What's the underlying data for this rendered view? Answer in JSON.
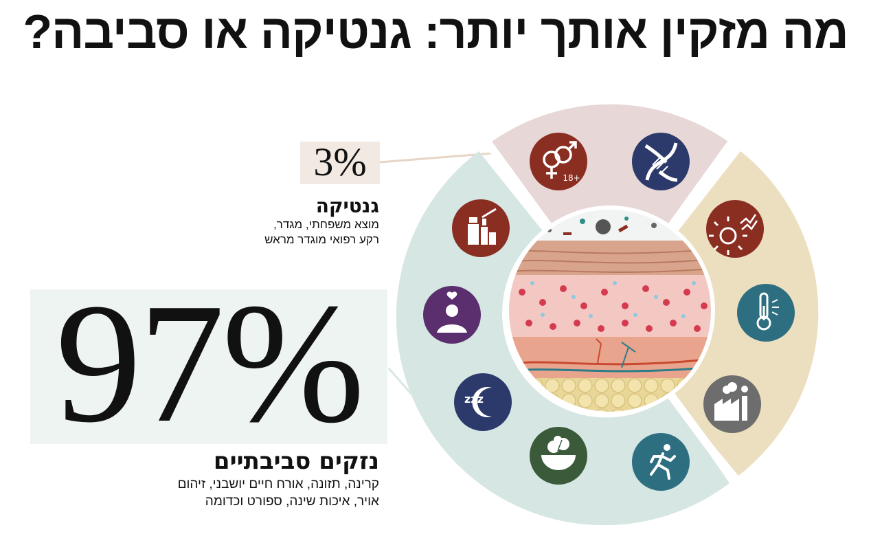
{
  "title": "מה מזקין אותך יותר: גנטיקה או סביבה?",
  "genetics": {
    "percent": "3%",
    "heading": "גנטיקה",
    "description_lines": [
      "מוצא משפחתי, מגדר,",
      "רקע רפואי מוגדר מראש"
    ]
  },
  "environment": {
    "percent": "97%",
    "heading": "נזקים סביבתיים",
    "description_lines": [
      "קרינה, תזונה, אורח חיים יושבני, זיהום",
      "אויר, איכות שינה, ספורט וכדומה"
    ]
  },
  "icons": {
    "gender": {
      "name": "gender-icon",
      "label": "18+"
    },
    "dna": {
      "name": "dna-icon"
    },
    "sun": {
      "name": "sun-icon"
    },
    "temperature": {
      "name": "thermometer-icon"
    },
    "pollution": {
      "name": "factory-icon"
    },
    "sport": {
      "name": "runner-icon"
    },
    "nutrition": {
      "name": "salad-bowl-icon"
    },
    "sleep": {
      "name": "sleep-moon-icon",
      "label": "zzz"
    },
    "lifestyle": {
      "name": "meditation-icon"
    },
    "cosmetics": {
      "name": "cosmetics-icon"
    }
  },
  "colors": {
    "genetics_segment": "#e7d7d6",
    "environment_segment_teal": "#d5e6e3",
    "environment_segment_tan": "#ecdfc0",
    "icon_dark_red": "#8a2e22",
    "icon_navy": "#2b3a6b",
    "icon_teal": "#2d6e80",
    "icon_gray": "#6d6d6d",
    "icon_green": "#3a5a3a",
    "icon_purple": "#5b2e6e",
    "leader_line": "#e8d5c6"
  }
}
